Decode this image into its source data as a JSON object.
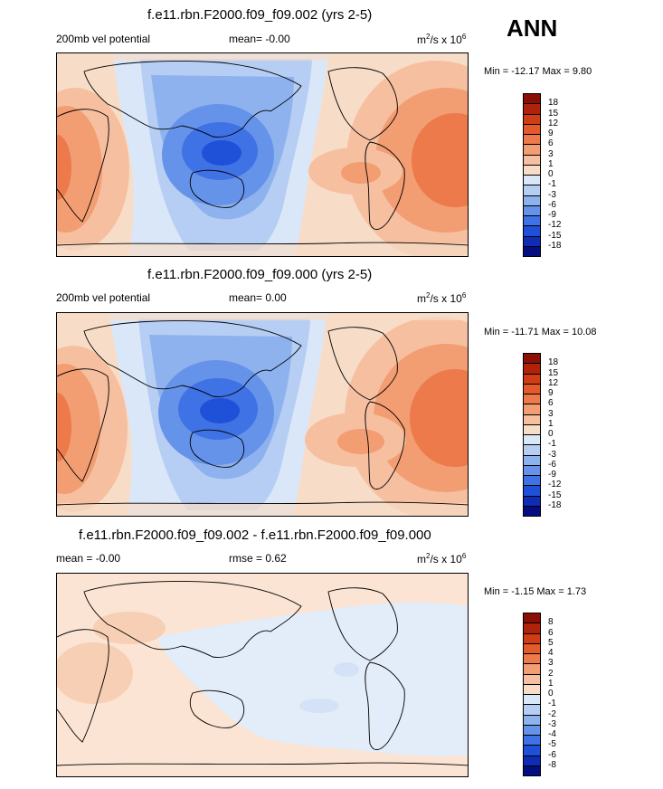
{
  "season": "ANN",
  "panels": [
    {
      "title": "f.e11.rbn.F2000.f09_f09.002 (yrs 2-5)",
      "left_label": "200mb vel potential",
      "stat": "mean=  -0.00",
      "units_main": "m",
      "units_sup1": "2",
      "units_mid": "/s x 10",
      "units_sup2": "6",
      "minmax": "Min = -12.17 Max =   9.80"
    },
    {
      "title": "f.e11.rbn.F2000.f09_f09.000 (yrs 2-5)",
      "left_label": "200mb vel potential",
      "stat": "mean=   0.00",
      "units_main": "m",
      "units_sup1": "2",
      "units_mid": "/s x 10",
      "units_sup2": "6",
      "minmax": "Min = -11.71 Max =  10.08"
    },
    {
      "title": "f.e11.rbn.F2000.f09_f09.002 - f.e11.rbn.F2000.f09_f09.000",
      "left_label": "mean =  -0.00",
      "stat": "rmse =   0.62",
      "units_main": "m",
      "units_sup1": "2",
      "units_mid": "/s x 10",
      "units_sup2": "6",
      "minmax": "Min =  -1.15 Max =   1.73"
    }
  ],
  "colors": {
    "pos": [
      "#f7ddc8",
      "#f6bfa0",
      "#f29d72",
      "#ec7a4b",
      "#e45a2a",
      "#d03d14",
      "#b0220a",
      "#8b0f04"
    ],
    "neg": [
      "#dae7f8",
      "#b6cef3",
      "#8eb2ee",
      "#6593ea",
      "#3f72e4",
      "#1f50d8",
      "#0e2cb5",
      "#050e80"
    ],
    "diff_pos": "#fbe4d3",
    "diff_neg": "#e3ecf9",
    "diff_pos2": "#f6cfb4"
  },
  "chart_data": [
    {
      "type": "heatmap",
      "title": "f.e11.rbn.F2000.f09_f09.002 (yrs 2-5)",
      "variable": "200mb vel potential",
      "units": "m2/s x 10^6",
      "mean": -0.0,
      "min": -12.17,
      "max": 9.8,
      "levels": [
        -18,
        -15,
        -12,
        -9,
        -6,
        -3,
        -1,
        0,
        1,
        3,
        6,
        9,
        12,
        15,
        18
      ],
      "xlim": [
        0,
        360
      ],
      "ylim": [
        -90,
        90
      ]
    },
    {
      "type": "heatmap",
      "title": "f.e11.rbn.F2000.f09_f09.000 (yrs 2-5)",
      "variable": "200mb vel potential",
      "units": "m2/s x 10^6",
      "mean": 0.0,
      "min": -11.71,
      "max": 10.08,
      "levels": [
        -18,
        -15,
        -12,
        -9,
        -6,
        -3,
        -1,
        0,
        1,
        3,
        6,
        9,
        12,
        15,
        18
      ],
      "xlim": [
        0,
        360
      ],
      "ylim": [
        -90,
        90
      ]
    },
    {
      "type": "heatmap",
      "title": "f.e11.rbn.F2000.f09_f09.002 - f.e11.rbn.F2000.f09_f09.000",
      "units": "m2/s x 10^6",
      "mean": -0.0,
      "rmse": 0.62,
      "min": -1.15,
      "max": 1.73,
      "levels": [
        -8,
        -6,
        -5,
        -4,
        -3,
        -2,
        -1,
        0,
        1,
        2,
        3,
        4,
        5,
        6,
        8
      ],
      "xlim": [
        0,
        360
      ],
      "ylim": [
        -90,
        90
      ]
    }
  ],
  "colorbars": [
    {
      "labels": [
        "18",
        "15",
        "12",
        "9",
        "6",
        "3",
        "1",
        "0",
        "-1",
        "-3",
        "-6",
        "-9",
        "-12",
        "-15",
        "-18"
      ]
    },
    {
      "labels": [
        "18",
        "15",
        "12",
        "9",
        "6",
        "3",
        "1",
        "0",
        "-1",
        "-3",
        "-6",
        "-9",
        "-12",
        "-15",
        "-18"
      ]
    },
    {
      "labels": [
        "8",
        "6",
        "5",
        "4",
        "3",
        "2",
        "1",
        "0",
        "-1",
        "-2",
        "-3",
        "-4",
        "-5",
        "-6",
        "-8"
      ]
    }
  ]
}
